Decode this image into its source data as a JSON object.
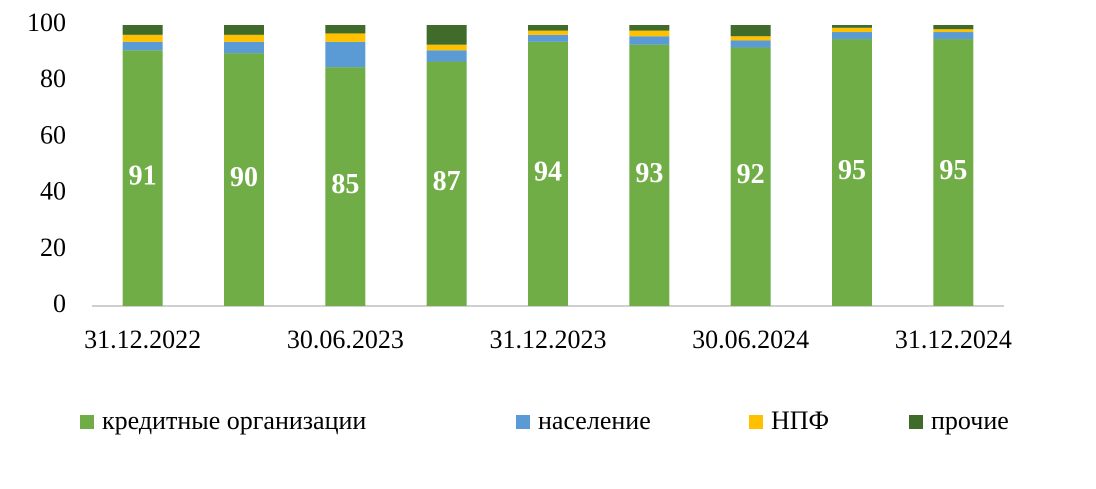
{
  "chart_data": {
    "type": "bar",
    "stacked": true,
    "categories": [
      "31.12.2022",
      null,
      "30.06.2023",
      null,
      "31.12.2023",
      null,
      "30.06.2024",
      null,
      "31.12.2024"
    ],
    "series": [
      {
        "name": "кредитные организации",
        "color": "#70ad47",
        "values": [
          91,
          90,
          85,
          87,
          94,
          93,
          92,
          95,
          95
        ],
        "show_labels": true
      },
      {
        "name": "население",
        "color": "#5b9bd5",
        "values": [
          3,
          4,
          9,
          4,
          2.5,
          3,
          2.5,
          2.5,
          2.5
        ]
      },
      {
        "name": "НПФ",
        "color": "#ffc000",
        "values": [
          2.5,
          2.5,
          3,
          2,
          1.5,
          2,
          1.5,
          1.5,
          1
        ]
      },
      {
        "name": "прочие",
        "color": "#3f6b2b",
        "values": [
          3.5,
          3.5,
          3,
          7,
          2,
          2,
          4,
          1,
          1.5
        ]
      }
    ],
    "ylim": [
      0,
      100
    ],
    "yticks": [
      0,
      20,
      40,
      60,
      80,
      100
    ],
    "legend": "bottom"
  }
}
